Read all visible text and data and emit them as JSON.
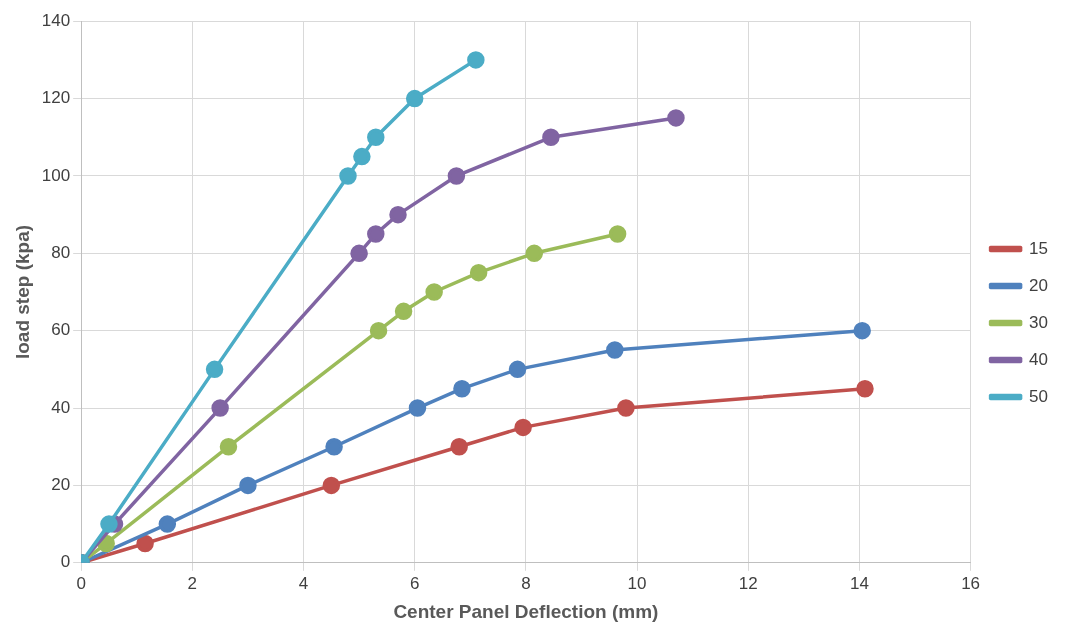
{
  "chart_data": {
    "type": "line",
    "xlabel": "Center Panel Deflection (mm)",
    "ylabel": "load step (kpa)",
    "xlim": [
      0,
      16
    ],
    "xticks": [
      0,
      2,
      4,
      6,
      8,
      10,
      12,
      14,
      16
    ],
    "ylim": [
      0,
      140
    ],
    "yticks": [
      0,
      20,
      40,
      60,
      80,
      100,
      120,
      140
    ],
    "grid": true,
    "legend": "right",
    "marker": "circle",
    "line_style": "solid",
    "series": [
      {
        "name": "15",
        "color": "#c0504d",
        "x": [
          0,
          1.15,
          4.5,
          6.8,
          7.95,
          9.8,
          14.1
        ],
        "values": [
          0,
          5,
          20,
          30,
          35,
          40,
          45
        ]
      },
      {
        "name": "20",
        "color": "#4f81bd",
        "x": [
          0,
          1.55,
          3.0,
          4.55,
          6.05,
          6.85,
          7.85,
          9.6,
          14.05
        ],
        "values": [
          0,
          10,
          20,
          30,
          40,
          45,
          50,
          55,
          60
        ]
      },
      {
        "name": "30",
        "color": "#9bbb59",
        "x": [
          0,
          0.45,
          2.65,
          5.35,
          5.8,
          6.35,
          7.15,
          8.15,
          9.65
        ],
        "values": [
          0,
          5,
          30,
          60,
          65,
          70,
          75,
          80,
          85
        ]
      },
      {
        "name": "40",
        "color": "#8064a2",
        "x": [
          0,
          0.6,
          2.5,
          5.0,
          5.3,
          5.7,
          6.75,
          8.45,
          10.7
        ],
        "values": [
          0,
          10,
          40,
          80,
          85,
          90,
          100,
          110,
          115
        ]
      },
      {
        "name": "50",
        "color": "#4bacc6",
        "x": [
          0,
          0.5,
          2.4,
          4.8,
          5.05,
          5.3,
          6.0,
          7.1
        ],
        "values": [
          0,
          10,
          50,
          100,
          105,
          110,
          120,
          130
        ]
      }
    ]
  }
}
